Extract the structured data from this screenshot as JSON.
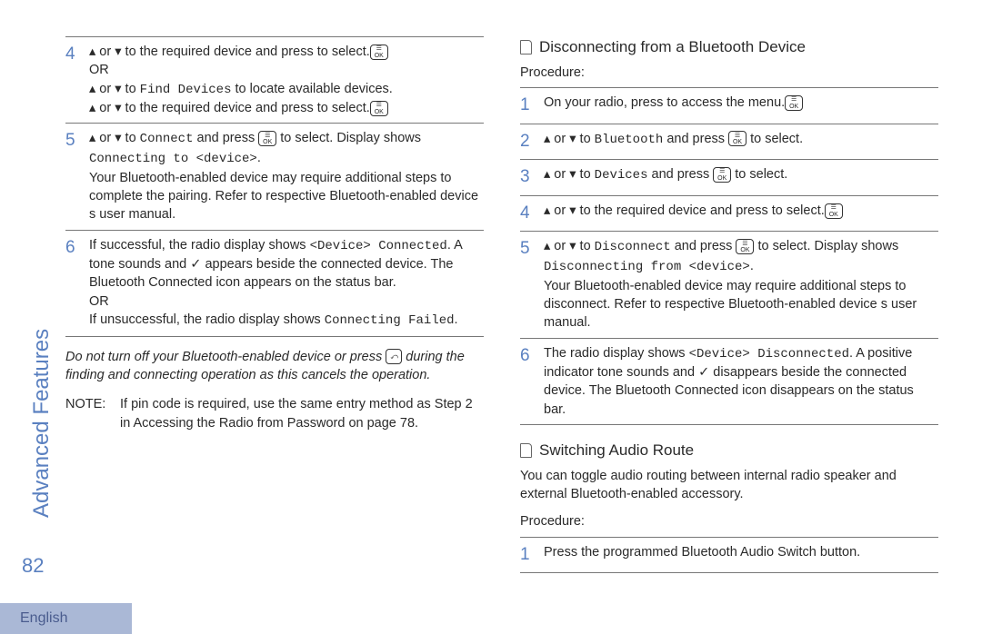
{
  "page_number": "82",
  "sidebar_label": "Advanced Features",
  "footer_lang": "English",
  "colors": {
    "accent": "#5a80c0",
    "footer_bg": "#aab8d6"
  },
  "icons": {
    "ok_line1": "☰",
    "ok_line2": "OK",
    "back": "⤺",
    "up": "▴",
    "down": "▾",
    "check": "✓"
  },
  "left": {
    "steps": [
      {
        "n": "4",
        "lines": [
          {
            "pre": "",
            "updown": true,
            "midA": " to the required device and press ",
            "ok": true,
            "midB": " to select."
          },
          {
            "plain": "OR"
          },
          {
            "pre": "",
            "updown": true,
            "midA": " to ",
            "monoA": "Find Devices",
            "midB": " to locate available devices."
          },
          {
            "pre": "",
            "updown": true,
            "midA": " to the required device and press ",
            "ok": true,
            "midB": " to select."
          }
        ]
      },
      {
        "n": "5",
        "lines": [
          {
            "pre": "",
            "updown": true,
            "midA": " to ",
            "monoA": "Connect",
            "midB": " and press ",
            "ok": true,
            "midC": " to select. Display shows "
          },
          {
            "monoA": "Connecting to <device>",
            "midB": "."
          },
          {
            "plain": "Your Bluetooth-enabled device may require additional steps to complete the pairing. Refer to respective Bluetooth-enabled device s user manual."
          }
        ]
      },
      {
        "n": "6",
        "lines": [
          {
            "pre": "If successful, the radio display shows ",
            "monoA": "<Device> Connected",
            "midB": ". A tone sounds and ",
            "check": true,
            "midC": " appears beside the connected device. The Bluetooth Connected icon appears on the status bar."
          },
          {
            "plain": "OR"
          },
          {
            "pre": "If unsuccessful, the radio display shows ",
            "monoA": "Connecting Failed",
            "midB": "."
          }
        ]
      }
    ],
    "italic_note": {
      "t1": "Do not turn off your Bluetooth-enabled device or press ",
      "t2": " during the finding and connecting operation as this cancels the operation."
    },
    "note": {
      "label": "NOTE:",
      "text": "If pin code is required, use the same entry method as Step 2 in Accessing the Radio from Password     on page 78."
    }
  },
  "right": {
    "sec1_title": "Disconnecting from a Bluetooth Device",
    "proc_label": "Procedure:",
    "steps1": [
      {
        "n": "1",
        "lines": [
          {
            "pre": "On your radio, press ",
            "ok": true,
            "midB": " to access the menu."
          }
        ]
      },
      {
        "n": "2",
        "lines": [
          {
            "pre": "",
            "updown": true,
            "midA": " to ",
            "monoA": "Bluetooth",
            "midB": " and press ",
            "ok": true,
            "midC": " to select."
          }
        ]
      },
      {
        "n": "3",
        "lines": [
          {
            "pre": "",
            "updown": true,
            "midA": " to ",
            "monoA": "Devices",
            "midB": " and press ",
            "ok": true,
            "midC": " to select."
          }
        ]
      },
      {
        "n": "4",
        "lines": [
          {
            "pre": "",
            "updown": true,
            "midA": " to the required device and press ",
            "ok": true,
            "midB": " to select."
          }
        ]
      },
      {
        "n": "5",
        "lines": [
          {
            "pre": "",
            "updown": true,
            "midA": " to ",
            "monoA": "Disconnect",
            "midB": " and press ",
            "ok": true,
            "midC": " to select. Display shows ",
            "monoB": "Disconnecting from <device>",
            "midD": "."
          },
          {
            "plain": "Your Bluetooth-enabled device may require additional steps to disconnect. Refer to respective Bluetooth-enabled device s user manual."
          }
        ]
      },
      {
        "n": "6",
        "lines": [
          {
            "pre": "The radio display shows ",
            "monoA": "<Device> Disconnected",
            "midB": ". A positive indicator tone sounds and ",
            "check": true,
            "midC": " disappears beside the connected device. The Bluetooth Connected icon disappears on the status bar."
          }
        ]
      }
    ],
    "sec2_title": "Switching Audio Route",
    "sec2_intro": "You can toggle audio routing between internal radio speaker and external Bluetooth-enabled accessory.",
    "steps2": [
      {
        "n": "1",
        "lines": [
          {
            "plain": "Press the programmed Bluetooth Audio Switch     button."
          }
        ]
      }
    ]
  }
}
